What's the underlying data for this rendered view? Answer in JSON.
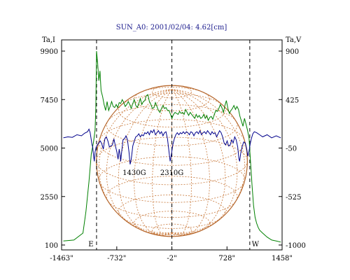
{
  "chart_data": {
    "type": "line",
    "title": "SUN_A0: 2001/02/04: 4.62[cm]",
    "left_axis": {
      "label": "Ta,I",
      "ticks": [
        100,
        2550,
        5000,
        7450,
        9900
      ],
      "ylim": [
        100,
        9900
      ]
    },
    "right_axis": {
      "label": "Ta,V",
      "ticks": [
        -1000,
        -525,
        -50,
        425,
        900
      ],
      "ylim": [
        -1000,
        900
      ]
    },
    "x_axis": {
      "ticks": [
        "-1463\"",
        "-732\"",
        "-2\"",
        "728\"",
        "1458\""
      ],
      "tick_values": [
        -1463,
        -732,
        -2,
        728,
        1458
      ],
      "xlim": [
        -1463,
        1458
      ]
    },
    "markers": [
      {
        "label": "E",
        "x": -1000
      },
      {
        "x": -2
      },
      {
        "label": "W",
        "x": 1030
      }
    ],
    "annotations": [
      {
        "text": "1430G",
        "x": -500
      },
      {
        "text": "2310G",
        "x": -2
      }
    ],
    "grid": false,
    "series": [
      {
        "color": "#008000",
        "axis": "left",
        "points": [
          [
            -1440,
            300
          ],
          [
            -1300,
            350
          ],
          [
            -1180,
            700
          ],
          [
            -1140,
            1800
          ],
          [
            -1100,
            3300
          ],
          [
            -1070,
            4700
          ],
          [
            -1040,
            5300
          ],
          [
            -1020,
            5900
          ],
          [
            -1010,
            7000
          ],
          [
            -1000,
            9900
          ],
          [
            -985,
            9300
          ],
          [
            -970,
            8400
          ],
          [
            -955,
            8900
          ],
          [
            -940,
            7900
          ],
          [
            -920,
            7600
          ],
          [
            -900,
            7200
          ],
          [
            -880,
            6900
          ],
          [
            -860,
            7350
          ],
          [
            -840,
            6900
          ],
          [
            -820,
            7100
          ],
          [
            -800,
            7350
          ],
          [
            -780,
            7100
          ],
          [
            -760,
            7050
          ],
          [
            -740,
            7200
          ],
          [
            -720,
            7050
          ],
          [
            -700,
            7300
          ],
          [
            -680,
            7250
          ],
          [
            -660,
            7450
          ],
          [
            -640,
            7300
          ],
          [
            -620,
            7100
          ],
          [
            -600,
            7200
          ],
          [
            -580,
            7350
          ],
          [
            -560,
            7200
          ],
          [
            -540,
            7000
          ],
          [
            -520,
            7250
          ],
          [
            -500,
            7450
          ],
          [
            -480,
            7150
          ],
          [
            -460,
            7050
          ],
          [
            -440,
            7250
          ],
          [
            -420,
            7500
          ],
          [
            -400,
            7200
          ],
          [
            -380,
            7350
          ],
          [
            -360,
            7400
          ],
          [
            -340,
            7650
          ],
          [
            -320,
            7700
          ],
          [
            -300,
            7350
          ],
          [
            -280,
            7200
          ],
          [
            -260,
            7000
          ],
          [
            -240,
            7050
          ],
          [
            -220,
            7300
          ],
          [
            -200,
            7100
          ],
          [
            -180,
            6900
          ],
          [
            -160,
            6800
          ],
          [
            -140,
            7000
          ],
          [
            -120,
            7150
          ],
          [
            -100,
            7000
          ],
          [
            -80,
            7050
          ],
          [
            -60,
            6900
          ],
          [
            -40,
            6900
          ],
          [
            -20,
            6700
          ],
          [
            -2,
            6500
          ],
          [
            20,
            6700
          ],
          [
            40,
            6800
          ],
          [
            60,
            6750
          ],
          [
            80,
            6700
          ],
          [
            100,
            6850
          ],
          [
            120,
            6750
          ],
          [
            140,
            6800
          ],
          [
            160,
            6700
          ],
          [
            180,
            6950
          ],
          [
            200,
            6800
          ],
          [
            220,
            6650
          ],
          [
            240,
            6800
          ],
          [
            260,
            6700
          ],
          [
            280,
            6600
          ],
          [
            300,
            6500
          ],
          [
            320,
            6700
          ],
          [
            340,
            6550
          ],
          [
            360,
            6650
          ],
          [
            380,
            6500
          ],
          [
            400,
            6550
          ],
          [
            420,
            6700
          ],
          [
            440,
            6500
          ],
          [
            460,
            6650
          ],
          [
            480,
            6400
          ],
          [
            500,
            6550
          ],
          [
            520,
            6600
          ],
          [
            540,
            6450
          ],
          [
            560,
            6700
          ],
          [
            580,
            6900
          ],
          [
            600,
            6850
          ],
          [
            620,
            7000
          ],
          [
            640,
            7200
          ],
          [
            660,
            7050
          ],
          [
            680,
            6800
          ],
          [
            700,
            7150
          ],
          [
            720,
            7400
          ],
          [
            740,
            7000
          ],
          [
            760,
            6750
          ],
          [
            780,
            6900
          ],
          [
            800,
            7000
          ],
          [
            820,
            7150
          ],
          [
            840,
            6950
          ],
          [
            860,
            7100
          ],
          [
            880,
            6950
          ],
          [
            900,
            6600
          ],
          [
            920,
            6350
          ],
          [
            940,
            6100
          ],
          [
            960,
            6500
          ],
          [
            980,
            6200
          ],
          [
            1000,
            5900
          ],
          [
            1020,
            5500
          ],
          [
            1040,
            4300
          ],
          [
            1060,
            3100
          ],
          [
            1080,
            2100
          ],
          [
            1100,
            1500
          ],
          [
            1120,
            1200
          ],
          [
            1140,
            1000
          ],
          [
            1160,
            850
          ],
          [
            1200,
            700
          ],
          [
            1260,
            500
          ],
          [
            1320,
            350
          ],
          [
            1380,
            300
          ],
          [
            1440,
            250
          ]
        ]
      },
      {
        "color": "#00008b",
        "axis": "right",
        "points": [
          [
            -1440,
            50
          ],
          [
            -1380,
            60
          ],
          [
            -1320,
            55
          ],
          [
            -1260,
            80
          ],
          [
            -1200,
            70
          ],
          [
            -1160,
            95
          ],
          [
            -1120,
            110
          ],
          [
            -1100,
            135
          ],
          [
            -1085,
            100
          ],
          [
            -1070,
            30
          ],
          [
            -1060,
            -20
          ],
          [
            -1050,
            -40
          ],
          [
            -1040,
            -120
          ],
          [
            -1030,
            -180
          ],
          [
            -1020,
            -90
          ],
          [
            -1005,
            -40
          ],
          [
            -990,
            -20
          ],
          [
            -970,
            0
          ],
          [
            -950,
            20
          ],
          [
            -930,
            -10
          ],
          [
            -910,
            -60
          ],
          [
            -890,
            40
          ],
          [
            -870,
            60
          ],
          [
            -850,
            20
          ],
          [
            -830,
            -40
          ],
          [
            -810,
            -30
          ],
          [
            -790,
            -20
          ],
          [
            -770,
            40
          ],
          [
            -750,
            -30
          ],
          [
            -730,
            -90
          ],
          [
            -715,
            -160
          ],
          [
            -700,
            -60
          ],
          [
            -690,
            -110
          ],
          [
            -680,
            -180
          ],
          [
            -665,
            -70
          ],
          [
            -650,
            30
          ],
          [
            -630,
            40
          ],
          [
            -610,
            70
          ],
          [
            -590,
            30
          ],
          [
            -570,
            -90
          ],
          [
            -555,
            -210
          ],
          [
            -540,
            -160
          ],
          [
            -520,
            -30
          ],
          [
            -500,
            20
          ],
          [
            -480,
            60
          ],
          [
            -460,
            70
          ],
          [
            -440,
            90
          ],
          [
            -420,
            60
          ],
          [
            -400,
            80
          ],
          [
            -380,
            70
          ],
          [
            -360,
            100
          ],
          [
            -340,
            90
          ],
          [
            -320,
            110
          ],
          [
            -300,
            80
          ],
          [
            -280,
            120
          ],
          [
            -260,
            100
          ],
          [
            -240,
            130
          ],
          [
            -220,
            80
          ],
          [
            -200,
            100
          ],
          [
            -180,
            120
          ],
          [
            -160,
            90
          ],
          [
            -140,
            110
          ],
          [
            -120,
            70
          ],
          [
            -100,
            100
          ],
          [
            -80,
            110
          ],
          [
            -60,
            40
          ],
          [
            -40,
            -90
          ],
          [
            -25,
            -180
          ],
          [
            -10,
            -120
          ],
          [
            10,
            -20
          ],
          [
            30,
            40
          ],
          [
            50,
            80
          ],
          [
            70,
            100
          ],
          [
            90,
            80
          ],
          [
            110,
            100
          ],
          [
            130,
            90
          ],
          [
            150,
            110
          ],
          [
            170,
            90
          ],
          [
            190,
            110
          ],
          [
            210,
            100
          ],
          [
            230,
            80
          ],
          [
            250,
            110
          ],
          [
            270,
            100
          ],
          [
            290,
            70
          ],
          [
            310,
            100
          ],
          [
            330,
            110
          ],
          [
            350,
            90
          ],
          [
            370,
            120
          ],
          [
            390,
            80
          ],
          [
            410,
            100
          ],
          [
            430,
            110
          ],
          [
            450,
            90
          ],
          [
            470,
            120
          ],
          [
            490,
            100
          ],
          [
            510,
            80
          ],
          [
            530,
            110
          ],
          [
            550,
            90
          ],
          [
            570,
            100
          ],
          [
            590,
            60
          ],
          [
            610,
            90
          ],
          [
            630,
            120
          ],
          [
            650,
            100
          ],
          [
            670,
            60
          ],
          [
            690,
            0
          ],
          [
            710,
            -20
          ],
          [
            730,
            20
          ],
          [
            750,
            -30
          ],
          [
            770,
            -20
          ],
          [
            790,
            30
          ],
          [
            810,
            0
          ],
          [
            830,
            60
          ],
          [
            850,
            30
          ],
          [
            870,
            -40
          ],
          [
            885,
            -150
          ],
          [
            895,
            -180
          ],
          [
            910,
            -100
          ],
          [
            930,
            -30
          ],
          [
            950,
            10
          ],
          [
            970,
            0
          ],
          [
            990,
            -60
          ],
          [
            1005,
            -130
          ],
          [
            1020,
            -80
          ],
          [
            1035,
            -10
          ],
          [
            1050,
            40
          ],
          [
            1070,
            90
          ],
          [
            1090,
            110
          ],
          [
            1120,
            100
          ],
          [
            1160,
            80
          ],
          [
            1200,
            60
          ],
          [
            1260,
            80
          ],
          [
            1320,
            50
          ],
          [
            1380,
            70
          ],
          [
            1440,
            50
          ]
        ]
      }
    ]
  },
  "disk": {
    "center_x": -2,
    "radius_arcsec": 1000,
    "color": "#b5652a",
    "grid_color": "#c8783a"
  }
}
